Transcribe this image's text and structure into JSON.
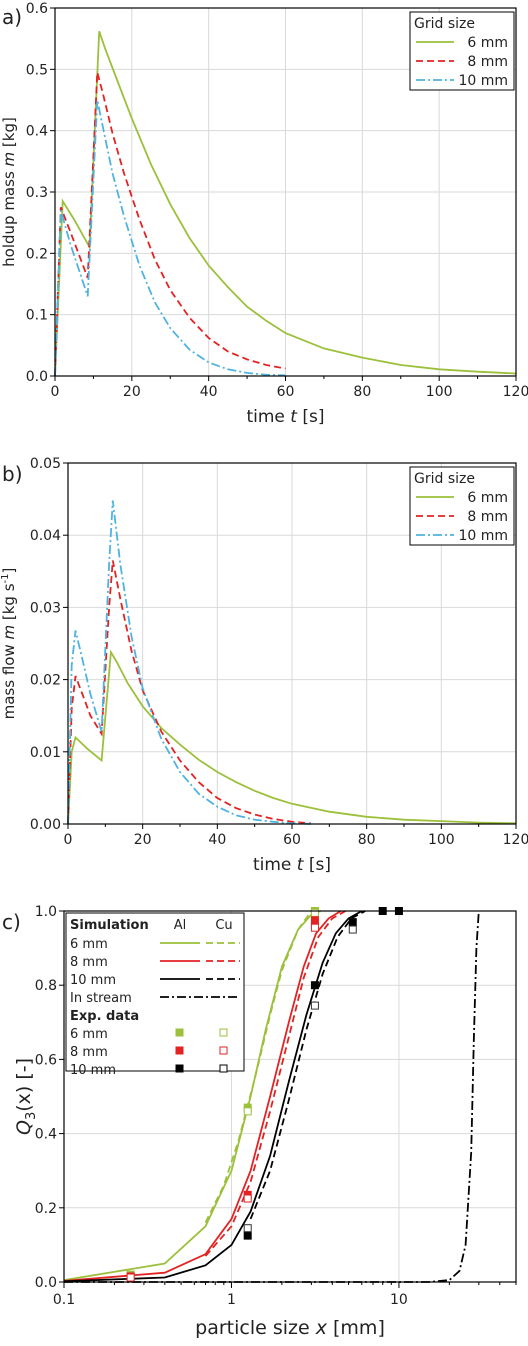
{
  "colors": {
    "green": "#9cc03b",
    "red": "#e32222",
    "blue": "#4fb3e0",
    "black": "#000000",
    "grid": "#d9d9d9"
  },
  "chart_data": [
    {
      "panel": "a)",
      "type": "line",
      "xlabel": "time",
      "xlabel_var": "t",
      "xlabel_unit": "[s]",
      "ylabel": "holdup mass",
      "ylabel_var": "m",
      "ylabel_unit": "[kg]",
      "xlim": [
        0,
        120
      ],
      "ylim": [
        0,
        0.6
      ],
      "xticks": [
        "0",
        "20",
        "40",
        "60",
        "80",
        "100",
        "120"
      ],
      "yticks": [
        "0.0",
        "0.1",
        "0.2",
        "0.3",
        "0.4",
        "0.5",
        "0.6"
      ],
      "grid": true,
      "legend_position": "top-right",
      "legend_title": "Grid size",
      "series": [
        {
          "name": "6 mm",
          "color": "green",
          "style": "solid",
          "x": [
            0,
            2,
            5,
            9,
            11.5,
            13,
            16,
            20,
            25,
            30,
            35,
            40,
            45,
            50,
            55,
            60,
            70,
            80,
            90,
            100,
            110,
            120
          ],
          "y": [
            0,
            0.285,
            0.255,
            0.21,
            0.562,
            0.535,
            0.485,
            0.42,
            0.345,
            0.28,
            0.225,
            0.18,
            0.145,
            0.113,
            0.09,
            0.07,
            0.045,
            0.03,
            0.018,
            0.011,
            0.007,
            0.004
          ]
        },
        {
          "name": "8 mm",
          "color": "red",
          "style": "dashed",
          "x": [
            0,
            1.5,
            4,
            8.5,
            11,
            12.5,
            15,
            18,
            22,
            26,
            30,
            35,
            40,
            45,
            50,
            55,
            60
          ],
          "y": [
            0,
            0.275,
            0.235,
            0.16,
            0.495,
            0.46,
            0.395,
            0.33,
            0.255,
            0.19,
            0.14,
            0.095,
            0.062,
            0.04,
            0.027,
            0.018,
            0.012
          ]
        },
        {
          "name": "10 mm",
          "color": "blue",
          "style": "dashdot",
          "x": [
            0,
            1.5,
            4,
            8.5,
            11,
            12.5,
            15,
            18,
            22,
            26,
            30,
            35,
            40,
            45,
            50,
            55,
            60
          ],
          "y": [
            0,
            0.27,
            0.215,
            0.13,
            0.45,
            0.405,
            0.33,
            0.26,
            0.18,
            0.12,
            0.078,
            0.043,
            0.022,
            0.011,
            0.005,
            0.002,
            0.001
          ]
        }
      ]
    },
    {
      "panel": "b)",
      "type": "line",
      "xlabel": "time",
      "xlabel_var": "t",
      "xlabel_unit": "[s]",
      "ylabel": "mass flow",
      "ylabel_var": "m",
      "ylabel_unit": "[kg s",
      "ylabel_sup": "-1",
      "ylabel_end": "]",
      "xlim": [
        0,
        120
      ],
      "ylim": [
        0,
        0.05
      ],
      "xticks": [
        "0",
        "20",
        "40",
        "60",
        "80",
        "100",
        "120"
      ],
      "yticks": [
        "0.00",
        "0.01",
        "0.02",
        "0.03",
        "0.04",
        "0.05"
      ],
      "grid": true,
      "legend_position": "top-right",
      "legend_title": "Grid size",
      "series": [
        {
          "name": "6 mm",
          "color": "green",
          "style": "solid",
          "x": [
            0,
            1,
            2,
            5,
            9,
            11.5,
            13,
            16,
            20,
            25,
            30,
            35,
            40,
            45,
            50,
            55,
            60,
            70,
            80,
            90,
            100,
            110,
            120
          ],
          "y": [
            0,
            0.01,
            0.012,
            0.0105,
            0.0088,
            0.0238,
            0.0225,
            0.0195,
            0.0163,
            0.0133,
            0.011,
            0.0089,
            0.0072,
            0.0058,
            0.0046,
            0.0036,
            0.0028,
            0.0017,
            0.001,
            0.0006,
            0.0004,
            0.0002,
            0.0001
          ]
        },
        {
          "name": "8 mm",
          "color": "red",
          "style": "dashed",
          "x": [
            0,
            1,
            2,
            4,
            6,
            9,
            11,
            12,
            14,
            17,
            20,
            25,
            30,
            35,
            40,
            45,
            50,
            55,
            60,
            65
          ],
          "y": [
            0,
            0.016,
            0.0205,
            0.0178,
            0.015,
            0.0125,
            0.03,
            0.0365,
            0.0312,
            0.024,
            0.0185,
            0.0128,
            0.0088,
            0.0058,
            0.0036,
            0.0022,
            0.0013,
            0.0007,
            0.0003,
            0.0001
          ]
        },
        {
          "name": "10 mm",
          "color": "blue",
          "style": "dashdot",
          "x": [
            0,
            1,
            2,
            4,
            6,
            9,
            11,
            12,
            14,
            17,
            20,
            25,
            30,
            35,
            40,
            45,
            50,
            55,
            60,
            65
          ],
          "y": [
            0,
            0.022,
            0.0268,
            0.0225,
            0.018,
            0.0128,
            0.036,
            0.0448,
            0.036,
            0.026,
            0.0188,
            0.0118,
            0.0072,
            0.0042,
            0.0024,
            0.0012,
            0.0006,
            0.0003,
            0.0001,
            0.0
          ]
        }
      ]
    },
    {
      "panel": "c)",
      "type": "line",
      "xscale": "log",
      "xlabel": "particle size",
      "xlabel_var": "x",
      "xlabel_unit": "[mm]",
      "ylabel": "Q",
      "ylabel_sub": "3",
      "ylabel_rest": "(x) [-]",
      "xlim": [
        0.1,
        50
      ],
      "ylim": [
        0,
        1.0
      ],
      "xticks": [
        {
          "v": 0.1,
          "label": "0.1"
        },
        {
          "v": 1,
          "label": "1"
        },
        {
          "v": 10,
          "label": "10"
        }
      ],
      "yticks": [
        "0.0",
        "0.2",
        "0.4",
        "0.6",
        "0.8",
        "1.0"
      ],
      "grid": true,
      "legend_position": "top-left",
      "legend": {
        "sim_header": "Simulation",
        "al_header": "Al",
        "cu_header": "Cu",
        "rows": [
          "6 mm",
          "8 mm",
          "10 mm",
          "In stream"
        ],
        "exp_header": "Exp. data",
        "exp_rows": [
          "6 mm",
          "8 mm",
          "10 mm"
        ]
      },
      "series": [
        {
          "name": "6 mm Al",
          "color": "green",
          "style": "solid",
          "x": [
            0.1,
            0.4,
            0.7,
            1.0,
            1.3,
            1.6,
            2.0,
            2.5,
            3.0,
            3.4
          ],
          "y": [
            0.005,
            0.05,
            0.15,
            0.3,
            0.5,
            0.68,
            0.85,
            0.95,
            0.99,
            1.0
          ]
        },
        {
          "name": "6 mm Cu",
          "color": "green",
          "style": "dashed",
          "x": [
            0.7,
            0.9,
            1.1,
            1.4,
            1.7,
            2.0,
            2.5,
            3.0
          ],
          "y": [
            0.16,
            0.26,
            0.38,
            0.56,
            0.72,
            0.84,
            0.95,
            1.0
          ]
        },
        {
          "name": "8 mm Al",
          "color": "red",
          "style": "solid",
          "x": [
            0.1,
            0.4,
            0.7,
            1.0,
            1.3,
            1.7,
            2.2,
            2.7,
            3.2,
            3.8,
            4.5
          ],
          "y": [
            0.003,
            0.025,
            0.075,
            0.17,
            0.3,
            0.5,
            0.7,
            0.85,
            0.94,
            0.98,
            1.0
          ]
        },
        {
          "name": "8 mm Cu",
          "color": "red",
          "style": "dashed",
          "x": [
            0.7,
            1.0,
            1.3,
            1.7,
            2.2,
            2.7,
            3.3,
            4.0,
            4.8
          ],
          "y": [
            0.07,
            0.15,
            0.27,
            0.46,
            0.66,
            0.82,
            0.93,
            0.98,
            1.0
          ]
        },
        {
          "name": "10 mm Al",
          "color": "black",
          "style": "solid",
          "x": [
            0.1,
            0.4,
            0.7,
            1.0,
            1.3,
            1.7,
            2.2,
            2.8,
            3.5,
            4.2,
            5.0,
            6.0
          ],
          "y": [
            0.002,
            0.012,
            0.045,
            0.1,
            0.19,
            0.34,
            0.54,
            0.72,
            0.86,
            0.94,
            0.98,
            1.0
          ]
        },
        {
          "name": "10 mm Cu",
          "color": "black",
          "style": "dashed",
          "x": [
            1.3,
            1.7,
            2.2,
            2.8,
            3.5,
            4.3,
            5.2,
            6.3
          ],
          "y": [
            0.17,
            0.3,
            0.49,
            0.68,
            0.83,
            0.93,
            0.98,
            1.0
          ]
        },
        {
          "name": "In stream",
          "color": "black",
          "style": "dashdot",
          "x": [
            0.1,
            15,
            20,
            23,
            25,
            27,
            28,
            29,
            30
          ],
          "y": [
            0,
            0,
            0.005,
            0.03,
            0.1,
            0.35,
            0.65,
            0.9,
            1.0
          ]
        }
      ],
      "markers": [
        {
          "name": "6 mm Al exp",
          "color": "green",
          "filled": true,
          "x": [
            0.25,
            1.25,
            3.15
          ],
          "y": [
            0.02,
            0.47,
            1.0
          ]
        },
        {
          "name": "6 mm Cu exp",
          "color": "green",
          "filled": false,
          "x": [
            0.25,
            1.25,
            3.15
          ],
          "y": [
            0.015,
            0.46,
            0.995
          ]
        },
        {
          "name": "8 mm Al exp",
          "color": "red",
          "filled": true,
          "x": [
            0.25,
            1.25,
            3.15
          ],
          "y": [
            0.015,
            0.235,
            0.975
          ]
        },
        {
          "name": "8 mm Cu exp",
          "color": "red",
          "filled": false,
          "x": [
            0.25,
            1.25,
            3.15
          ],
          "y": [
            0.012,
            0.225,
            0.955
          ]
        },
        {
          "name": "10 mm Al exp",
          "color": "black",
          "filled": true,
          "x": [
            1.25,
            3.15,
            5.3,
            8.0,
            10.0
          ],
          "y": [
            0.125,
            0.8,
            0.97,
            1.0,
            1.0
          ]
        },
        {
          "name": "10 mm Cu exp",
          "color": "black",
          "filled": false,
          "x": [
            1.25,
            3.15,
            5.3
          ],
          "y": [
            0.145,
            0.745,
            0.95
          ]
        }
      ]
    }
  ]
}
